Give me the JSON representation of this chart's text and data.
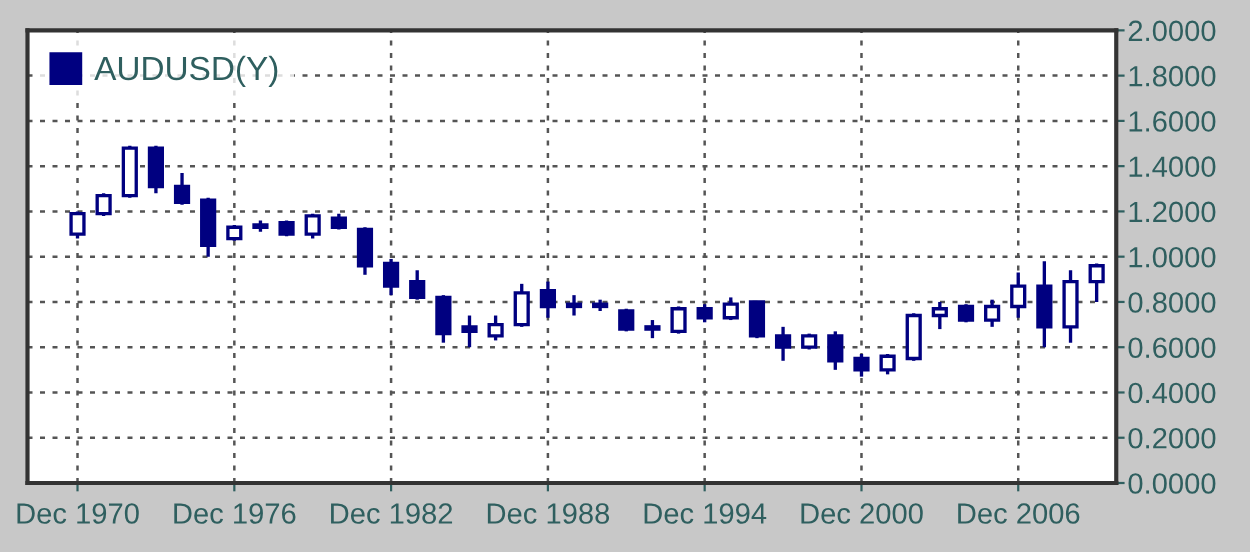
{
  "chart_data": {
    "type": "candlestick",
    "x": [
      "1970-12",
      "1971-12",
      "1972-12",
      "1973-12",
      "1974-12",
      "1975-12",
      "1976-12",
      "1977-12",
      "1978-12",
      "1979-12",
      "1980-12",
      "1981-12",
      "1982-12",
      "1983-12",
      "1984-12",
      "1985-12",
      "1986-12",
      "1987-12",
      "1988-12",
      "1989-12",
      "1990-12",
      "1991-12",
      "1992-12",
      "1993-12",
      "1994-12",
      "1995-12",
      "1996-12",
      "1997-12",
      "1998-12",
      "1999-12",
      "2000-12",
      "2001-12",
      "2002-12",
      "2003-12",
      "2004-12",
      "2005-12",
      "2006-12",
      "2007-12",
      "2008-12",
      "2009-12"
    ],
    "series": [
      {
        "name": "AUDUSD(Y)",
        "color": "#000080",
        "ohlc": [
          [
            1.1,
            1.2,
            1.08,
            1.19
          ],
          [
            1.19,
            1.28,
            1.18,
            1.27
          ],
          [
            1.27,
            1.49,
            1.26,
            1.48
          ],
          [
            1.48,
            1.49,
            1.28,
            1.31
          ],
          [
            1.31,
            1.37,
            1.23,
            1.24
          ],
          [
            1.25,
            1.26,
            1.0,
            1.05
          ],
          [
            1.08,
            1.14,
            1.07,
            1.13
          ],
          [
            1.14,
            1.16,
            1.11,
            1.13
          ],
          [
            1.15,
            1.16,
            1.09,
            1.1
          ],
          [
            1.1,
            1.19,
            1.08,
            1.18
          ],
          [
            1.17,
            1.19,
            1.12,
            1.13
          ],
          [
            1.12,
            1.13,
            0.92,
            0.96
          ],
          [
            0.97,
            0.99,
            0.83,
            0.87
          ],
          [
            0.89,
            0.94,
            0.81,
            0.82
          ],
          [
            0.82,
            0.83,
            0.62,
            0.66
          ],
          [
            0.69,
            0.74,
            0.6,
            0.67
          ],
          [
            0.65,
            0.74,
            0.63,
            0.7
          ],
          [
            0.7,
            0.88,
            0.69,
            0.84
          ],
          [
            0.85,
            0.89,
            0.73,
            0.78
          ],
          [
            0.79,
            0.83,
            0.74,
            0.78
          ],
          [
            0.79,
            0.81,
            0.76,
            0.78
          ],
          [
            0.76,
            0.77,
            0.67,
            0.68
          ],
          [
            0.69,
            0.72,
            0.64,
            0.68
          ],
          [
            0.67,
            0.78,
            0.66,
            0.77
          ],
          [
            0.77,
            0.79,
            0.71,
            0.73
          ],
          [
            0.73,
            0.82,
            0.72,
            0.79
          ],
          [
            0.8,
            0.8,
            0.64,
            0.65
          ],
          [
            0.65,
            0.69,
            0.54,
            0.6
          ],
          [
            0.6,
            0.66,
            0.59,
            0.65
          ],
          [
            0.65,
            0.67,
            0.5,
            0.54
          ],
          [
            0.55,
            0.57,
            0.47,
            0.5
          ],
          [
            0.5,
            0.57,
            0.48,
            0.56
          ],
          [
            0.55,
            0.75,
            0.54,
            0.74
          ],
          [
            0.74,
            0.8,
            0.68,
            0.77
          ],
          [
            0.78,
            0.79,
            0.71,
            0.72
          ],
          [
            0.72,
            0.81,
            0.69,
            0.78
          ],
          [
            0.78,
            0.93,
            0.73,
            0.87
          ],
          [
            0.87,
            0.98,
            0.6,
            0.69
          ],
          [
            0.69,
            0.94,
            0.62,
            0.89
          ],
          [
            0.89,
            0.97,
            0.8,
            0.96
          ]
        ]
      }
    ],
    "xlim": [
      "1969-01",
      "2010-09"
    ],
    "xticks": [
      {
        "value": "1970-12",
        "label": "Dec 1970"
      },
      {
        "value": "1976-12",
        "label": "Dec 1976"
      },
      {
        "value": "1982-12",
        "label": "Dec 1982"
      },
      {
        "value": "1988-12",
        "label": "Dec 1988"
      },
      {
        "value": "1994-12",
        "label": "Dec 1994"
      },
      {
        "value": "2000-12",
        "label": "Dec 2000"
      },
      {
        "value": "2006-12",
        "label": "Dec 2006"
      }
    ],
    "ylim": [
      0,
      2
    ],
    "yticks": [
      {
        "value": 0,
        "label": "0.0000"
      },
      {
        "value": 0.2,
        "label": "0.2000"
      },
      {
        "value": 0.4,
        "label": "0.4000"
      },
      {
        "value": 0.6,
        "label": "0.6000"
      },
      {
        "value": 0.8,
        "label": "0.8000"
      },
      {
        "value": 1.0,
        "label": "1.0000"
      },
      {
        "value": 1.2,
        "label": "1.2000"
      },
      {
        "value": 1.4,
        "label": "1.4000"
      },
      {
        "value": 1.6,
        "label": "1.6000"
      },
      {
        "value": 1.8,
        "label": "1.8000"
      },
      {
        "value": 2.0,
        "label": "2.0000"
      }
    ],
    "grid": true,
    "legend": "top left"
  }
}
